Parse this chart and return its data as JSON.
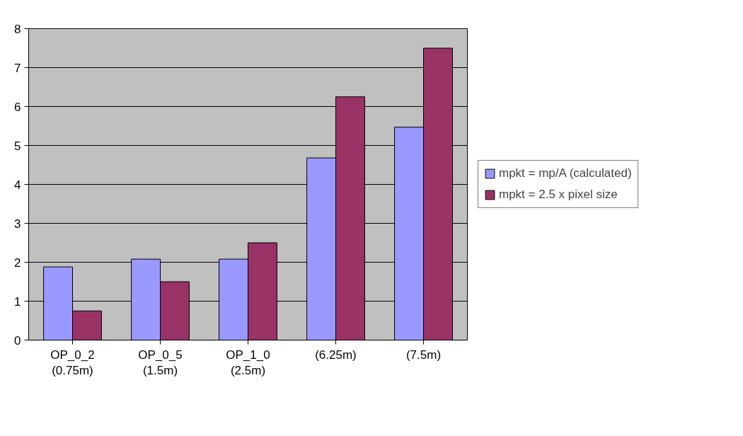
{
  "chart_data": {
    "type": "bar",
    "categories": [
      "OP_0_2\n(0.75m)",
      "OP_0_5\n(1.5m)",
      "OP_1_0\n(2.5m)",
      "(6.25m)",
      "(7.5m)"
    ],
    "series": [
      {
        "name": "mpkt = mp/A (calculated)",
        "color": "#9999ff",
        "values": [
          1.88,
          2.08,
          2.08,
          4.68,
          5.47
        ]
      },
      {
        "name": "mpkt = 2.5 x pixel size",
        "color": "#993366",
        "values": [
          0.75,
          1.5,
          2.5,
          6.25,
          7.5
        ]
      }
    ],
    "ylim": [
      0,
      8
    ],
    "yticks": [
      0,
      1,
      2,
      3,
      4,
      5,
      6,
      7,
      8
    ],
    "grid": "y",
    "legend": "right"
  }
}
